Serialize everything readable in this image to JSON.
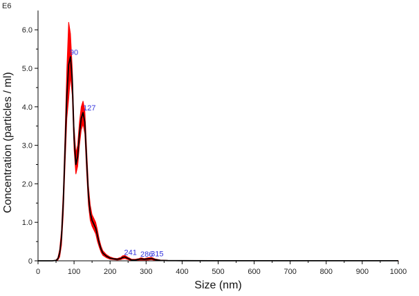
{
  "chart_data": {
    "type": "line",
    "xlabel": "Size (nm)",
    "ylabel": "Concentration (particles / ml)",
    "y_exponent_label": "E6",
    "xlim": [
      0,
      1000
    ],
    "ylim": [
      0,
      6.5
    ],
    "x_ticks": [
      0,
      100,
      200,
      300,
      400,
      500,
      600,
      700,
      800,
      900,
      1000
    ],
    "y_ticks": [
      0,
      1.0,
      2.0,
      3.0,
      4.0,
      5.0,
      6.0
    ],
    "y_tick_labels": [
      "0",
      "1.0",
      "2.0",
      "3.0",
      "4.0",
      "5.0",
      "6.0"
    ],
    "grid": false,
    "colors": {
      "mean": "#000000",
      "error_band": "#ff0000",
      "peak_labels": "#3333dd",
      "axis": "#000000"
    },
    "series": [
      {
        "role": "mean",
        "x": [
          0,
          40,
          50,
          55,
          60,
          65,
          70,
          75,
          80,
          85,
          90,
          95,
          100,
          105,
          110,
          115,
          120,
          125,
          130,
          135,
          140,
          145,
          150,
          155,
          160,
          165,
          170,
          175,
          180,
          190,
          200,
          210,
          220,
          230,
          235,
          241,
          250,
          260,
          270,
          280,
          286,
          295,
          305,
          315,
          325,
          340,
          360,
          400,
          500,
          600,
          700,
          800,
          900,
          1000
        ],
        "y": [
          0,
          0,
          0.01,
          0.05,
          0.2,
          0.6,
          1.5,
          2.9,
          4.3,
          5.1,
          5.3,
          4.7,
          3.2,
          2.5,
          2.7,
          3.3,
          3.7,
          3.85,
          3.6,
          2.6,
          1.7,
          1.25,
          1.05,
          0.95,
          0.85,
          0.65,
          0.45,
          0.3,
          0.2,
          0.12,
          0.07,
          0.05,
          0.04,
          0.06,
          0.09,
          0.1,
          0.06,
          0.02,
          0.02,
          0.04,
          0.05,
          0.04,
          0.05,
          0.06,
          0.03,
          0.01,
          0.005,
          0.003,
          0.002,
          0.001,
          0.001,
          0.001,
          0.001,
          0.001
        ]
      },
      {
        "role": "error_band",
        "x": [
          0,
          40,
          50,
          55,
          60,
          65,
          70,
          75,
          80,
          85,
          90,
          95,
          100,
          105,
          110,
          115,
          120,
          125,
          130,
          135,
          140,
          145,
          150,
          155,
          160,
          165,
          170,
          175,
          180,
          190,
          200,
          210,
          220,
          230,
          235,
          241,
          250,
          260,
          270,
          280,
          286,
          295,
          305,
          315,
          325,
          340,
          360,
          400,
          500,
          600,
          700,
          800,
          900,
          1000
        ],
        "upper": [
          0,
          0,
          0.02,
          0.08,
          0.3,
          0.8,
          1.8,
          3.3,
          5.0,
          6.2,
          5.9,
          5.0,
          3.5,
          2.8,
          3.0,
          3.6,
          4.0,
          4.15,
          3.9,
          2.9,
          1.95,
          1.45,
          1.2,
          1.1,
          1.0,
          0.8,
          0.55,
          0.38,
          0.26,
          0.16,
          0.1,
          0.07,
          0.06,
          0.09,
          0.13,
          0.14,
          0.09,
          0.04,
          0.04,
          0.06,
          0.08,
          0.06,
          0.08,
          0.09,
          0.05,
          0.02,
          0.01,
          0.006,
          0.003,
          0.002,
          0.002,
          0.002,
          0.002,
          0.002
        ],
        "lower": [
          0,
          0,
          0,
          0.02,
          0.1,
          0.4,
          1.2,
          2.5,
          3.7,
          4.2,
          4.8,
          4.3,
          2.9,
          2.25,
          2.45,
          3.0,
          3.4,
          3.55,
          3.3,
          2.3,
          1.45,
          1.05,
          0.9,
          0.8,
          0.7,
          0.5,
          0.35,
          0.22,
          0.14,
          0.08,
          0.04,
          0.03,
          0.02,
          0.03,
          0.05,
          0.06,
          0.03,
          0,
          0,
          0.02,
          0.02,
          0.02,
          0.02,
          0.03,
          0.01,
          0,
          0,
          0,
          0,
          0,
          0,
          0,
          0,
          0
        ]
      }
    ],
    "peak_annotations": [
      {
        "label": "90",
        "x": 90,
        "y": 5.3
      },
      {
        "label": "127",
        "x": 127,
        "y": 3.85
      },
      {
        "label": "241",
        "x": 241,
        "y": 0.1
      },
      {
        "label": "286",
        "x": 286,
        "y": 0.05
      },
      {
        "label": "315",
        "x": 315,
        "y": 0.06
      }
    ]
  }
}
